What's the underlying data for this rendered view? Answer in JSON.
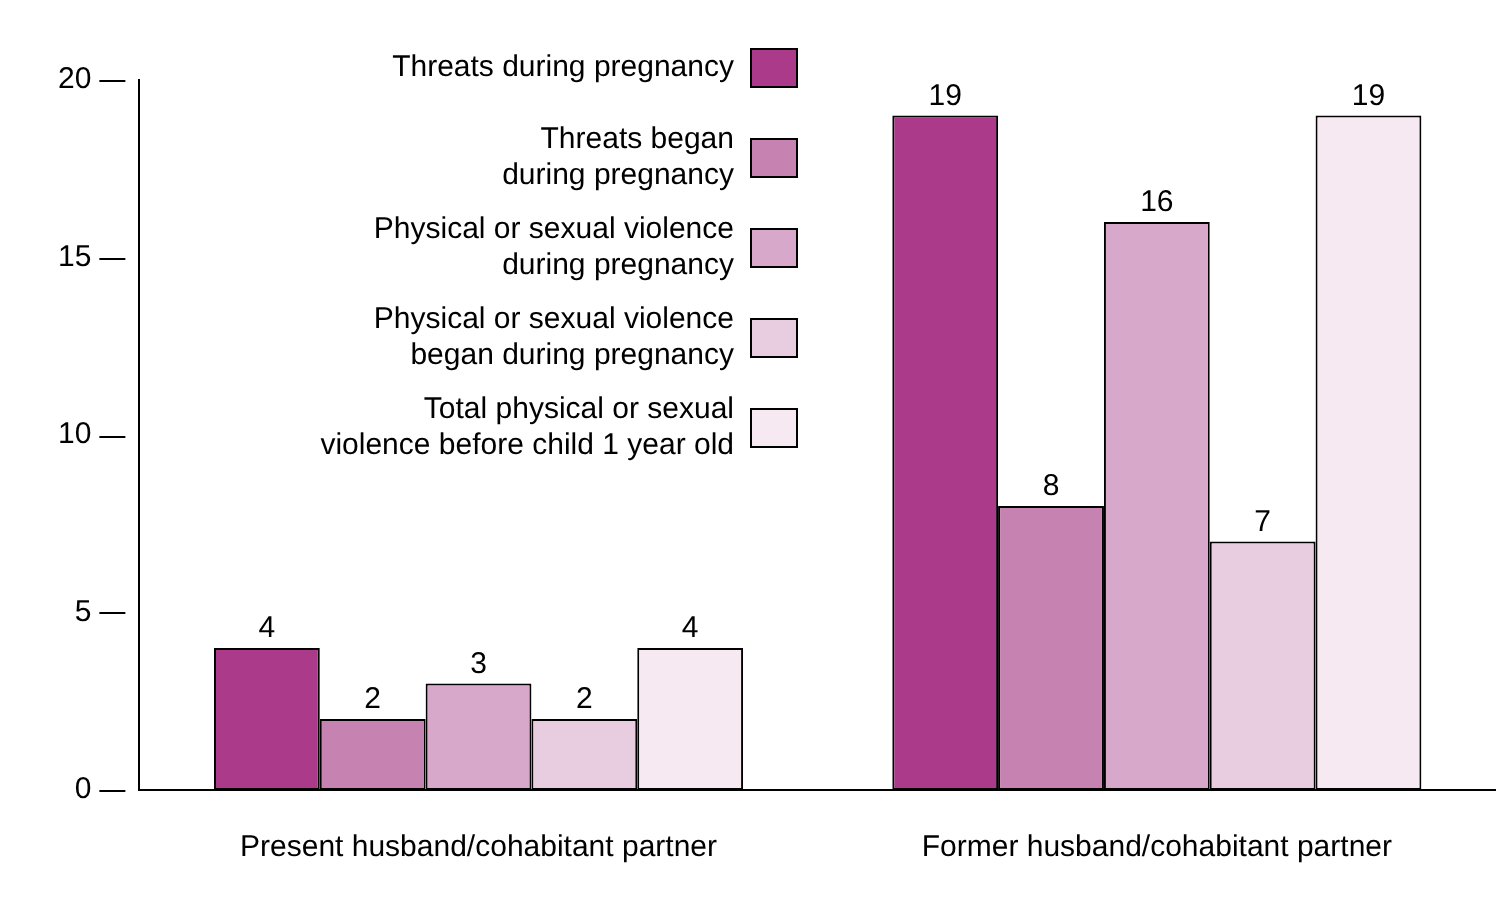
{
  "chart_data": {
    "type": "bar",
    "categories": [
      "Present husband/cohabitant partner",
      "Former husband/cohabitant partner"
    ],
    "series": [
      {
        "name": "Threats during pregnancy",
        "color": "#ab3a8a",
        "values": [
          4,
          19
        ]
      },
      {
        "name": "Threats began\nduring pregnancy",
        "color": "#c683b2",
        "values": [
          2,
          8
        ]
      },
      {
        "name": "Physical or sexual violence\nduring pregnancy",
        "color": "#d7a8ca",
        "values": [
          3,
          16
        ]
      },
      {
        "name": "Physical or sexual violence\nbegan during pregnancy",
        "color": "#e8cde1",
        "values": [
          2,
          7
        ]
      },
      {
        "name": "Total physical or sexual\nviolence before child 1 year old",
        "color": "#f6e9f1",
        "values": [
          4,
          19
        ]
      }
    ],
    "ylim": [
      0,
      20
    ],
    "yticks": [
      0,
      5,
      10,
      15,
      20
    ],
    "grid": false,
    "legend": "top left",
    "data_labels": true
  }
}
